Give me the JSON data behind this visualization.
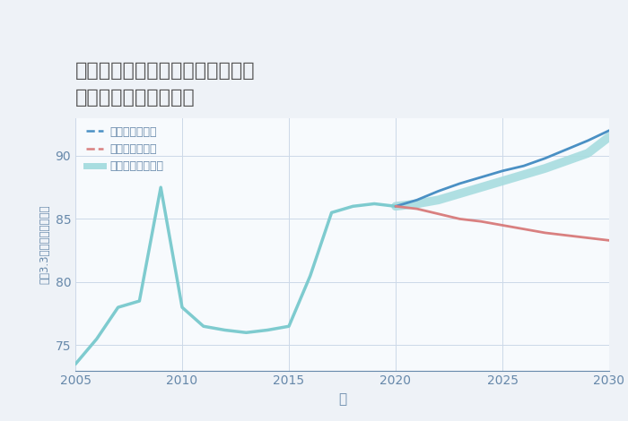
{
  "title_line1": "愛知県清須市西枇杷島町小野田の",
  "title_line2": "中古戸建ての価格推移",
  "xlabel": "年",
  "ylabel": "坪（3.3㎡）単価（万円）",
  "xlim": [
    2005,
    2030
  ],
  "ylim": [
    73,
    93
  ],
  "yticks": [
    75,
    80,
    85,
    90
  ],
  "xticks": [
    2005,
    2010,
    2015,
    2020,
    2025,
    2030
  ],
  "bg_color": "#eef2f7",
  "plot_bg_color": "#f7fafd",
  "historical_years": [
    2005,
    2006,
    2007,
    2008,
    2009,
    2010,
    2011,
    2012,
    2013,
    2014,
    2015,
    2016,
    2017,
    2018,
    2019,
    2020
  ],
  "historical_values": [
    73.5,
    75.5,
    78.0,
    78.5,
    87.5,
    78.0,
    76.5,
    76.2,
    76.0,
    76.2,
    76.5,
    80.5,
    85.5,
    86.0,
    86.2,
    86.0
  ],
  "future_years": [
    2020,
    2021,
    2022,
    2023,
    2024,
    2025,
    2026,
    2027,
    2028,
    2029,
    2030
  ],
  "good_values": [
    86.0,
    86.5,
    87.2,
    87.8,
    88.3,
    88.8,
    89.2,
    89.8,
    90.5,
    91.2,
    92.0
  ],
  "bad_values": [
    86.0,
    85.8,
    85.4,
    85.0,
    84.8,
    84.5,
    84.2,
    83.9,
    83.7,
    83.5,
    83.3
  ],
  "normal_values": [
    86.0,
    86.2,
    86.5,
    87.0,
    87.5,
    88.0,
    88.5,
    89.0,
    89.6,
    90.2,
    91.5
  ],
  "color_historical": "#7ecbcf",
  "color_good": "#4a90c4",
  "color_bad": "#d98080",
  "color_normal": "#a8dde0",
  "legend_labels": [
    "グッドシナリオ",
    "バッドシナリオ",
    "ノーマルシナリオ"
  ],
  "title_color": "#555555",
  "axis_color": "#6688aa",
  "grid_color": "#ccd8e8",
  "title_fontsize": 16,
  "legend_fontsize": 9,
  "axis_fontsize": 10
}
